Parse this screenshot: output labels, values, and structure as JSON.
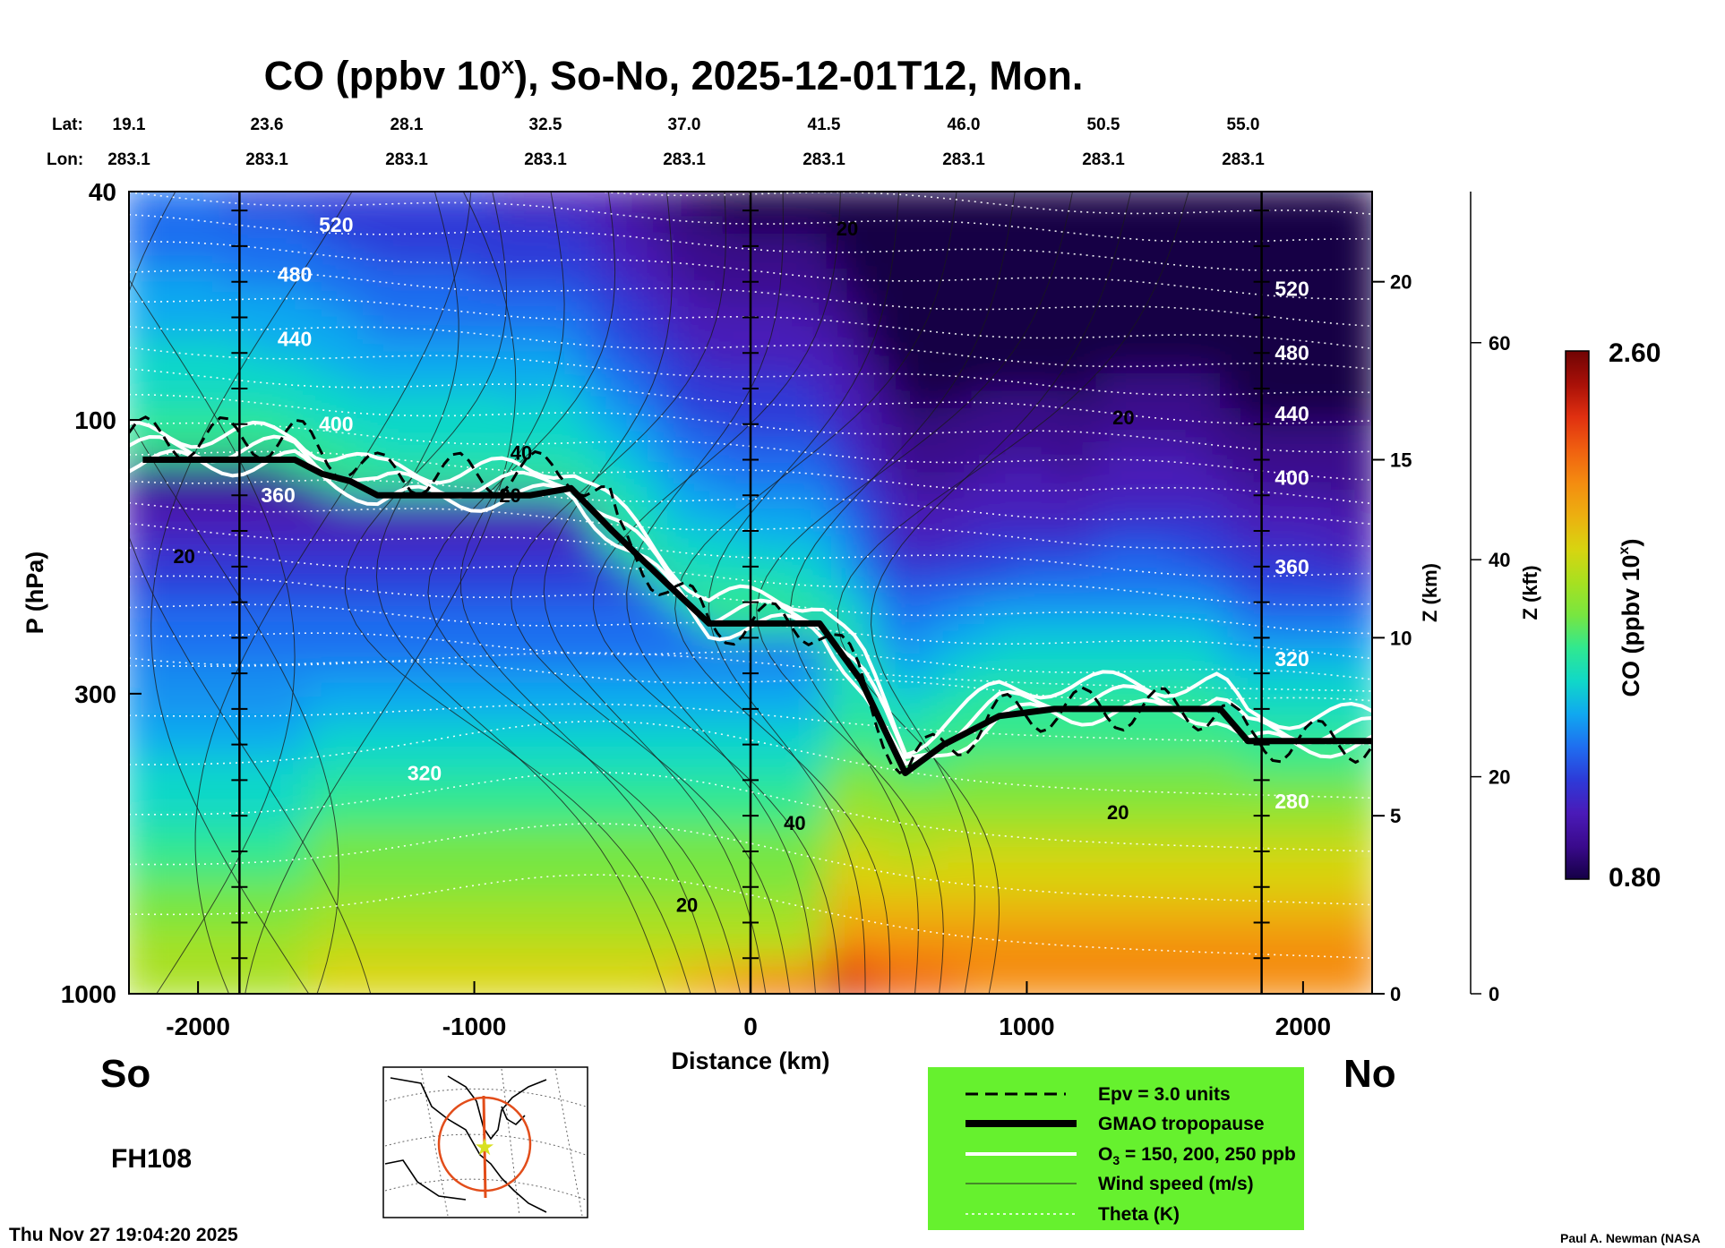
{
  "chart_data": {
    "type": "heatmap",
    "title": "CO (ppbv 10",
    "title_superscript": "x",
    "title_rest": "), So-No, 2025-12-01T12, Mon.",
    "lat_label": "Lat:",
    "lon_label": "Lon:",
    "lat_values": [
      "19.1",
      "23.6",
      "28.1",
      "32.5",
      "37.0",
      "41.5",
      "46.0",
      "50.5",
      "55.0"
    ],
    "lon_values": [
      "283.1",
      "283.1",
      "283.1",
      "283.1",
      "283.1",
      "283.1",
      "283.1",
      "283.1",
      "283.1"
    ],
    "xlabel": "Distance (km)",
    "ylabel": "P (hPa)",
    "xlim": [
      -2250,
      2250
    ],
    "ylim_hpa": [
      1000,
      40
    ],
    "x_ticks": [
      {
        "v": -2000,
        "t": "-2000"
      },
      {
        "v": -1000,
        "t": "-1000"
      },
      {
        "v": 0,
        "t": "0"
      },
      {
        "v": 1000,
        "t": "1000"
      },
      {
        "v": 2000,
        "t": "2000"
      }
    ],
    "p_ticks": [
      {
        "v": 40,
        "t": "40"
      },
      {
        "v": 100,
        "t": "100"
      },
      {
        "v": 300,
        "t": "300"
      },
      {
        "v": 1000,
        "t": "1000"
      }
    ],
    "z_km_label": "Z (km)",
    "z_km_ticks": [
      {
        "v": 0,
        "t": "0"
      },
      {
        "v": 5,
        "t": "5"
      },
      {
        "v": 10,
        "t": "10"
      },
      {
        "v": 15,
        "t": "15"
      },
      {
        "v": 20,
        "t": "20"
      }
    ],
    "z_kft_label": "Z (kft)",
    "z_kft_ticks": [
      {
        "v": 0,
        "t": "0"
      },
      {
        "v": 20,
        "t": "20"
      },
      {
        "v": 40,
        "t": "40"
      },
      {
        "v": 60,
        "t": "60"
      }
    ],
    "colorbar": {
      "label": "CO (ppbv 10",
      "label_sup": "x",
      "label_end": ")",
      "max_label": "2.60",
      "min_label": "0.80",
      "range": [
        0.8,
        2.6
      ],
      "colors": [
        "#150045",
        "#3a0a8c",
        "#4a1ab8",
        "#2d3ad8",
        "#1f6ef0",
        "#10a8f0",
        "#10d8c8",
        "#30e890",
        "#78e640",
        "#a8e020",
        "#d8d410",
        "#ecb010",
        "#f48c10",
        "#f06010",
        "#e03010",
        "#a81008",
        "#700404"
      ]
    },
    "theta_labels": [
      {
        "x": -1500,
        "z": 21.4,
        "t": "520"
      },
      {
        "x": -1650,
        "z": 20.0,
        "t": "480"
      },
      {
        "x": -1650,
        "z": 18.2,
        "t": "440"
      },
      {
        "x": -1500,
        "z": 15.8,
        "t": "400"
      },
      {
        "x": -1710,
        "z": 13.8,
        "t": "360"
      },
      {
        "x": 1960,
        "z": 19.6,
        "t": "520"
      },
      {
        "x": 1960,
        "z": 17.8,
        "t": "480"
      },
      {
        "x": 1960,
        "z": 16.1,
        "t": "440"
      },
      {
        "x": 1960,
        "z": 14.3,
        "t": "400"
      },
      {
        "x": 1960,
        "z": 11.8,
        "t": "360"
      },
      {
        "x": 1960,
        "z": 9.2,
        "t": "320"
      },
      {
        "x": -1180,
        "z": 6.0,
        "t": "320"
      },
      {
        "x": 1960,
        "z": 5.2,
        "t": "280"
      }
    ],
    "wind_labels": [
      {
        "x": -2050,
        "z": 12.1,
        "t": "20"
      },
      {
        "x": -830,
        "z": 15.0,
        "t": "40"
      },
      {
        "x": -870,
        "z": 13.8,
        "t": "20"
      },
      {
        "x": 1350,
        "z": 16.0,
        "t": "20"
      },
      {
        "x": 160,
        "z": 4.6,
        "t": "40"
      },
      {
        "x": 1330,
        "z": 4.9,
        "t": "20"
      },
      {
        "x": -230,
        "z": 2.3,
        "t": "20"
      }
    ],
    "wind20_label_top": {
      "x": 350,
      "z": 21.3,
      "t": "20"
    },
    "tropopause_km": [
      {
        "x": -2200,
        "z": 15.0
      },
      {
        "x": -1650,
        "z": 15.0
      },
      {
        "x": -1550,
        "z": 14.6
      },
      {
        "x": -1450,
        "z": 14.4
      },
      {
        "x": -1350,
        "z": 14.0
      },
      {
        "x": -800,
        "z": 14.0
      },
      {
        "x": -650,
        "z": 14.2
      },
      {
        "x": -500,
        "z": 13.0
      },
      {
        "x": -300,
        "z": 11.5
      },
      {
        "x": -150,
        "z": 10.4
      },
      {
        "x": 0,
        "z": 10.4
      },
      {
        "x": 250,
        "z": 10.4
      },
      {
        "x": 400,
        "z": 8.8
      },
      {
        "x": 560,
        "z": 6.2
      },
      {
        "x": 700,
        "z": 7.0
      },
      {
        "x": 900,
        "z": 7.8
      },
      {
        "x": 1100,
        "z": 8.0
      },
      {
        "x": 1700,
        "z": 8.0
      },
      {
        "x": 1800,
        "z": 7.1
      },
      {
        "x": 2250,
        "z": 7.1
      }
    ],
    "domain_split_x": [
      -1850,
      0,
      1850
    ],
    "series": [
      {
        "name": "Epv = 3.0 units"
      },
      {
        "name": "GMAO tropopause"
      },
      {
        "name": "O3 = 150, 200, 250 ppb"
      },
      {
        "name": "Wind speed (m/s)"
      },
      {
        "name": "Theta (K)"
      }
    ]
  },
  "labels": {
    "south": "So",
    "north": "No",
    "forecast_hour": "FH108",
    "timestamp": "Thu Nov 27 19:04:20 2025",
    "credit": "Paul A. Newman (NASA"
  },
  "legend": {
    "epv": "Epv = 3.0 units",
    "tropopause": "GMAO tropopause",
    "ozone_prefix": "O",
    "ozone_sub": "3",
    "ozone_rest": " = 150, 200, 250 ppb",
    "wind": "Wind speed (m/s)",
    "theta": "Theta (K)",
    "bg_color": "#66f12e"
  }
}
